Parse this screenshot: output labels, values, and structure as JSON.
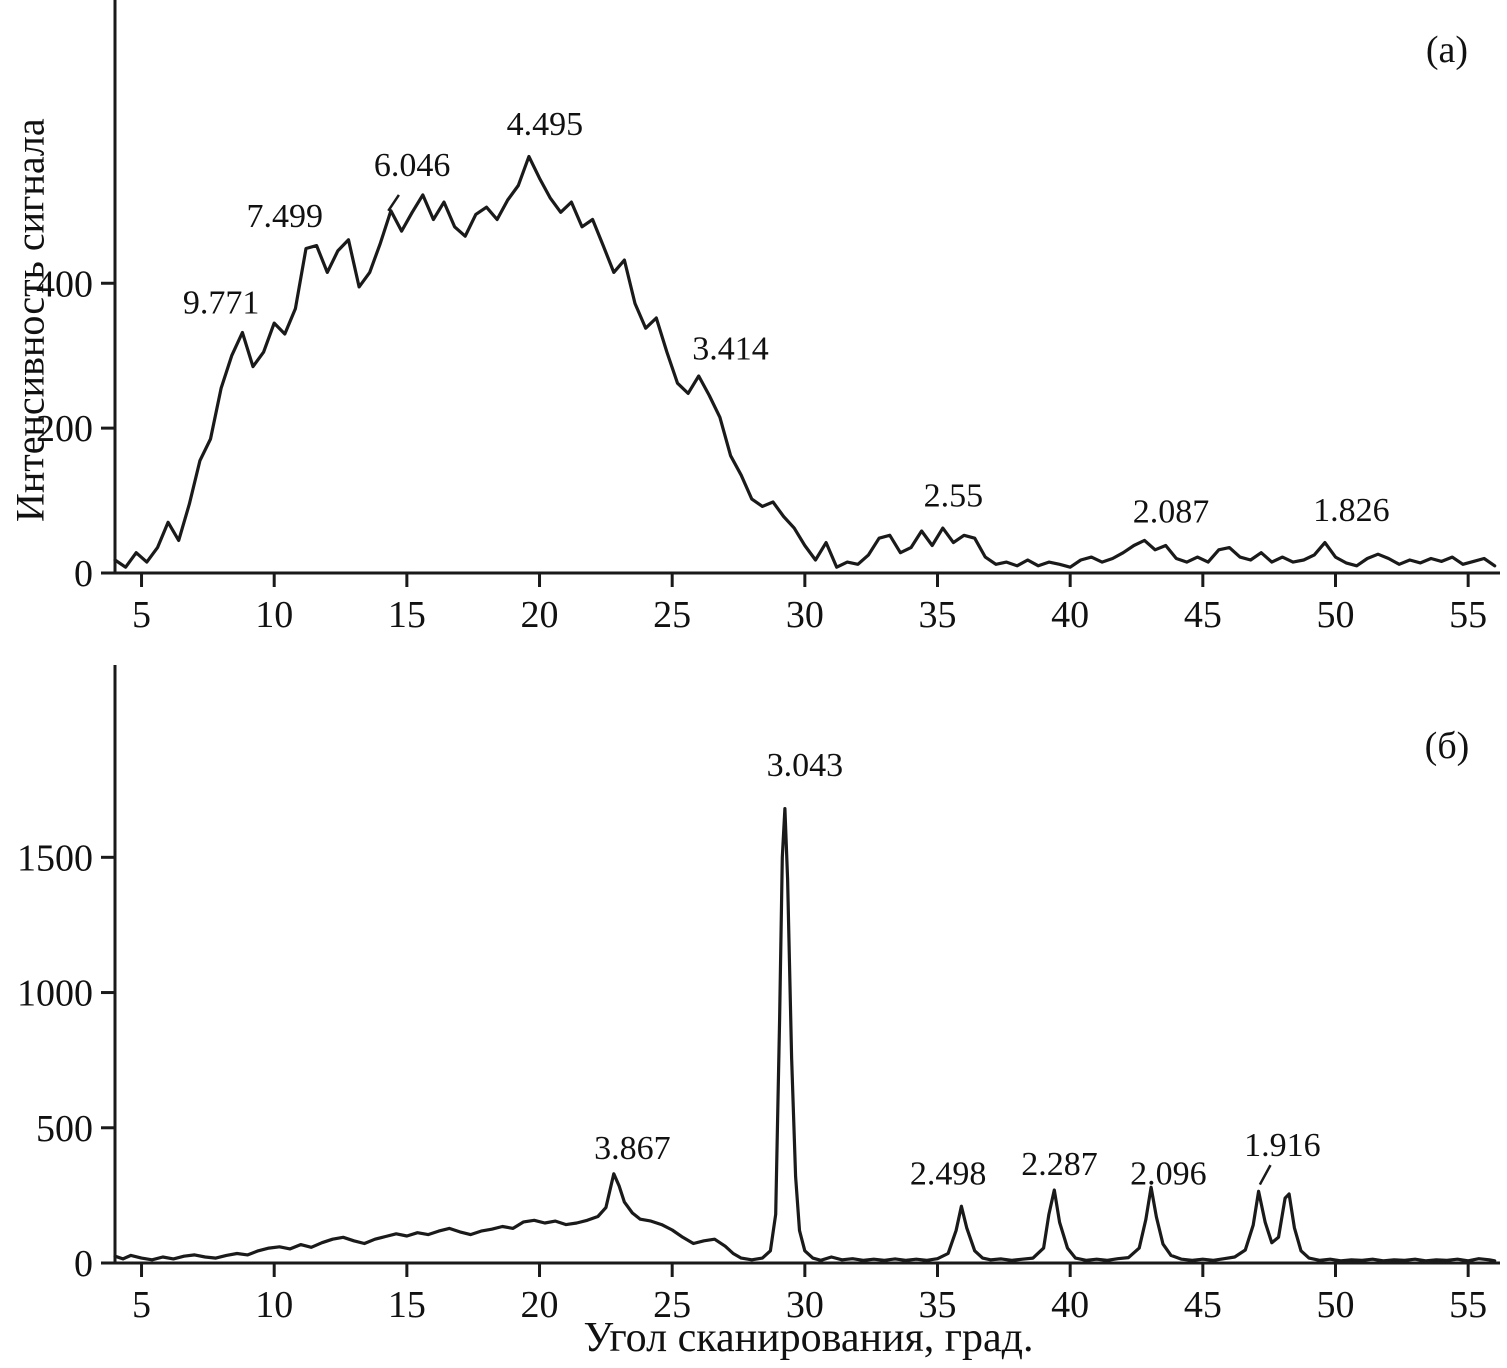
{
  "figure": {
    "xlabel": "Угол сканирования, град.",
    "ylabel": "Интенсивность сигнала",
    "line_color": "#1a1a1a",
    "axis_color": "#1a1a1a",
    "background": "#ffffff"
  },
  "chart_data": [
    {
      "type": "line",
      "panel_label": "(а)",
      "title": "",
      "xlabel": "Угол сканирования, град.",
      "ylabel": "Интенсивность сигнала",
      "grid": false,
      "legend": "none",
      "xlim": [
        4,
        56.2
      ],
      "ylim": [
        0,
        780
      ],
      "xticks": [
        5,
        10,
        15,
        20,
        25,
        30,
        35,
        40,
        45,
        50,
        55
      ],
      "yticks": [
        0,
        200,
        400
      ],
      "x0": 4.0,
      "dx": 0.4,
      "y": [
        18,
        8,
        28,
        15,
        35,
        70,
        45,
        95,
        155,
        185,
        255,
        300,
        332,
        285,
        305,
        345,
        330,
        365,
        448,
        452,
        415,
        445,
        460,
        395,
        415,
        455,
        500,
        472,
        498,
        522,
        488,
        512,
        478,
        465,
        495,
        505,
        488,
        515,
        535,
        575,
        545,
        518,
        498,
        512,
        478,
        488,
        452,
        415,
        432,
        372,
        338,
        352,
        305,
        262,
        248,
        272,
        245,
        215,
        162,
        135,
        102,
        92,
        98,
        78,
        62,
        38,
        18,
        42,
        8,
        15,
        12,
        25,
        48,
        52,
        28,
        35,
        58,
        38,
        62,
        42,
        52,
        48,
        22,
        12,
        15,
        10,
        18,
        10,
        15,
        12,
        8,
        18,
        22,
        15,
        20,
        28,
        38,
        45,
        32,
        38,
        20,
        15,
        22,
        15,
        32,
        35,
        22,
        18,
        28,
        15,
        22,
        15,
        18,
        25,
        42,
        22,
        14,
        10,
        20,
        26,
        20,
        12,
        18,
        14,
        20,
        16,
        22,
        12,
        16,
        20,
        10
      ],
      "annotations": [
        {
          "label": "9.771",
          "lx": 8.0,
          "ly": 358
        },
        {
          "label": "7.499",
          "lx": 10.4,
          "ly": 478
        },
        {
          "label": "6.046",
          "lx": 15.2,
          "ly": 548,
          "leader": [
            14.7,
            522,
            14.3,
            500
          ]
        },
        {
          "label": "4.495",
          "lx": 20.2,
          "ly": 605
        },
        {
          "label": "3.414",
          "lx": 27.2,
          "ly": 295
        },
        {
          "label": "2.55",
          "lx": 35.6,
          "ly": 92
        },
        {
          "label": "2.087",
          "lx": 43.8,
          "ly": 70
        },
        {
          "label": "1.826",
          "lx": 50.6,
          "ly": 72
        }
      ]
    },
    {
      "type": "line",
      "panel_label": "(б)",
      "title": "",
      "xlabel": "Угол сканирования, град.",
      "ylabel": "Интенсивность сигнала",
      "grid": false,
      "legend": "none",
      "xlim": [
        4,
        56.2
      ],
      "ylim": [
        0,
        2200
      ],
      "xticks": [
        5,
        10,
        15,
        20,
        25,
        30,
        35,
        40,
        45,
        50,
        55
      ],
      "yticks": [
        0,
        500,
        1000,
        1500
      ],
      "points": [
        [
          4,
          25
        ],
        [
          4.3,
          15
        ],
        [
          4.6,
          28
        ],
        [
          5,
          18
        ],
        [
          5.4,
          12
        ],
        [
          5.8,
          22
        ],
        [
          6.2,
          15
        ],
        [
          6.6,
          25
        ],
        [
          7,
          30
        ],
        [
          7.4,
          22
        ],
        [
          7.8,
          18
        ],
        [
          8.2,
          28
        ],
        [
          8.6,
          35
        ],
        [
          9,
          30
        ],
        [
          9.4,
          45
        ],
        [
          9.8,
          55
        ],
        [
          10.2,
          60
        ],
        [
          10.6,
          52
        ],
        [
          11,
          68
        ],
        [
          11.4,
          58
        ],
        [
          11.8,
          75
        ],
        [
          12.2,
          88
        ],
        [
          12.6,
          95
        ],
        [
          13,
          82
        ],
        [
          13.4,
          72
        ],
        [
          13.8,
          88
        ],
        [
          14.2,
          98
        ],
        [
          14.6,
          108
        ],
        [
          15,
          100
        ],
        [
          15.4,
          112
        ],
        [
          15.8,
          105
        ],
        [
          16.2,
          118
        ],
        [
          16.6,
          128
        ],
        [
          17,
          115
        ],
        [
          17.4,
          105
        ],
        [
          17.8,
          118
        ],
        [
          18.2,
          125
        ],
        [
          18.6,
          135
        ],
        [
          19,
          128
        ],
        [
          19.4,
          152
        ],
        [
          19.8,
          158
        ],
        [
          20.2,
          148
        ],
        [
          20.6,
          155
        ],
        [
          21,
          142
        ],
        [
          21.4,
          148
        ],
        [
          21.8,
          158
        ],
        [
          22.2,
          172
        ],
        [
          22.5,
          205
        ],
        [
          22.8,
          330
        ],
        [
          23,
          285
        ],
        [
          23.2,
          225
        ],
        [
          23.5,
          185
        ],
        [
          23.8,
          162
        ],
        [
          24.2,
          155
        ],
        [
          24.6,
          142
        ],
        [
          25,
          122
        ],
        [
          25.4,
          95
        ],
        [
          25.8,
          72
        ],
        [
          26.2,
          82
        ],
        [
          26.6,
          88
        ],
        [
          27,
          62
        ],
        [
          27.3,
          35
        ],
        [
          27.6,
          18
        ],
        [
          28,
          12
        ],
        [
          28.4,
          18
        ],
        [
          28.7,
          45
        ],
        [
          28.9,
          180
        ],
        [
          29.05,
          900
        ],
        [
          29.15,
          1500
        ],
        [
          29.25,
          1680
        ],
        [
          29.35,
          1420
        ],
        [
          29.5,
          760
        ],
        [
          29.65,
          320
        ],
        [
          29.8,
          120
        ],
        [
          30,
          45
        ],
        [
          30.3,
          18
        ],
        [
          30.6,
          10
        ],
        [
          31,
          22
        ],
        [
          31.4,
          12
        ],
        [
          31.8,
          16
        ],
        [
          32.2,
          10
        ],
        [
          32.6,
          14
        ],
        [
          33,
          10
        ],
        [
          33.4,
          15
        ],
        [
          33.8,
          10
        ],
        [
          34.2,
          14
        ],
        [
          34.6,
          10
        ],
        [
          35,
          16
        ],
        [
          35.4,
          35
        ],
        [
          35.7,
          120
        ],
        [
          35.9,
          210
        ],
        [
          36.1,
          130
        ],
        [
          36.4,
          45
        ],
        [
          36.7,
          18
        ],
        [
          37,
          12
        ],
        [
          37.4,
          15
        ],
        [
          37.8,
          10
        ],
        [
          38.2,
          14
        ],
        [
          38.6,
          18
        ],
        [
          39,
          55
        ],
        [
          39.2,
          180
        ],
        [
          39.4,
          270
        ],
        [
          39.6,
          150
        ],
        [
          39.9,
          55
        ],
        [
          40.2,
          18
        ],
        [
          40.6,
          10
        ],
        [
          41,
          14
        ],
        [
          41.4,
          10
        ],
        [
          41.8,
          16
        ],
        [
          42.2,
          20
        ],
        [
          42.6,
          55
        ],
        [
          42.85,
          160
        ],
        [
          43.05,
          280
        ],
        [
          43.25,
          170
        ],
        [
          43.5,
          70
        ],
        [
          43.8,
          28
        ],
        [
          44.2,
          14
        ],
        [
          44.6,
          10
        ],
        [
          45,
          14
        ],
        [
          45.4,
          10
        ],
        [
          45.8,
          16
        ],
        [
          46.2,
          22
        ],
        [
          46.6,
          48
        ],
        [
          46.9,
          140
        ],
        [
          47.1,
          265
        ],
        [
          47.35,
          150
        ],
        [
          47.6,
          75
        ],
        [
          47.85,
          95
        ],
        [
          48.1,
          240
        ],
        [
          48.25,
          255
        ],
        [
          48.45,
          130
        ],
        [
          48.7,
          45
        ],
        [
          49,
          18
        ],
        [
          49.4,
          10
        ],
        [
          49.8,
          14
        ],
        [
          50.2,
          8
        ],
        [
          50.6,
          12
        ],
        [
          51,
          10
        ],
        [
          51.4,
          14
        ],
        [
          51.8,
          8
        ],
        [
          52.2,
          12
        ],
        [
          52.6,
          10
        ],
        [
          53,
          14
        ],
        [
          53.4,
          8
        ],
        [
          53.8,
          12
        ],
        [
          54.2,
          10
        ],
        [
          54.6,
          14
        ],
        [
          55,
          8
        ],
        [
          55.4,
          16
        ],
        [
          55.8,
          12
        ],
        [
          56,
          8
        ]
      ],
      "annotations": [
        {
          "label": "3.867",
          "lx": 23.5,
          "ly": 385
        },
        {
          "label": "3.043",
          "lx": 30.0,
          "ly": 1800
        },
        {
          "label": "2.498",
          "lx": 35.4,
          "ly": 290
        },
        {
          "label": "2.287",
          "lx": 39.6,
          "ly": 325
        },
        {
          "label": "2.096",
          "lx": 43.7,
          "ly": 290
        },
        {
          "label": "1.916",
          "lx": 48.0,
          "ly": 395,
          "leader": [
            47.55,
            362,
            47.15,
            290
          ]
        }
      ]
    }
  ]
}
